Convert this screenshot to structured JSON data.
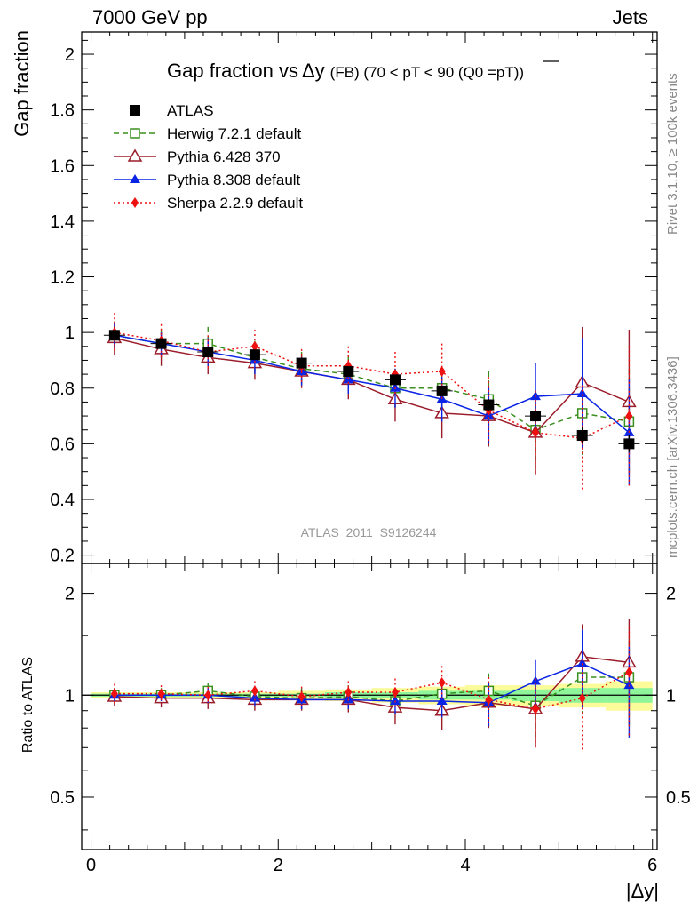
{
  "header": {
    "left": "7000 GeV pp",
    "right": "Jets"
  },
  "side_labels": {
    "top": "Rivet 3.1.10, ≥ 100k events",
    "bottom": "mcplots.cern.ch [arXiv:1306.3436]"
  },
  "watermark": "ATLAS_2011_S9126244",
  "colors": {
    "atlas": "#000000",
    "herwig": "#3a8f1e",
    "pythia6": "#9b1c2a",
    "pythia8": "#0a24e6",
    "sherpa": "#ee1111",
    "band_inner": "#8ef59a",
    "band_outer": "#fbfb9a"
  },
  "chart_data": [
    {
      "type": "scatter",
      "title_main": "Gap fraction vs",
      "title_var": "Δy",
      "title_detail": "(FB) (70 < pT <  90 (Q0 =pT))",
      "ylabel": "Gap fraction",
      "xlabel": "|Δy|",
      "xlim": [
        -0.1,
        6.05
      ],
      "ylim": [
        0.17,
        2.08
      ],
      "yticks": [
        0.2,
        0.4,
        0.6,
        0.8,
        1,
        1.2,
        1.4,
        1.6,
        1.8,
        2
      ],
      "legend_position": "top-left",
      "x": [
        0.25,
        0.75,
        1.25,
        1.75,
        2.25,
        2.75,
        3.25,
        3.75,
        4.25,
        4.75,
        5.25,
        5.75
      ],
      "series": [
        {
          "name": "ATLAS",
          "key": "atlas",
          "marker": "square-filled",
          "values": [
            0.99,
            0.96,
            0.93,
            0.92,
            0.89,
            0.86,
            0.83,
            0.79,
            0.74,
            0.7,
            0.63,
            0.6
          ],
          "errors": [
            0.01,
            0.01,
            0.01,
            0.01,
            0.01,
            0.01,
            0.01,
            0.01,
            0.02,
            0.02,
            0.03,
            0.03
          ]
        },
        {
          "name": "Herwig 7.2.1 default",
          "key": "herwig",
          "marker": "square-open",
          "dash": "6,4",
          "values": [
            0.99,
            0.96,
            0.96,
            0.91,
            0.87,
            0.85,
            0.8,
            0.8,
            0.76,
            0.65,
            0.71,
            0.68
          ],
          "errors": [
            0.04,
            0.05,
            0.06,
            0.06,
            0.06,
            0.07,
            0.07,
            0.08,
            0.1,
            0.13,
            0.15,
            0.19
          ]
        },
        {
          "name": "Pythia 6.428 370",
          "key": "pythia6",
          "marker": "triangle-open",
          "dash": "",
          "values": [
            0.98,
            0.94,
            0.91,
            0.89,
            0.86,
            0.83,
            0.76,
            0.71,
            0.7,
            0.64,
            0.82,
            0.75
          ],
          "errors": [
            0.06,
            0.06,
            0.06,
            0.06,
            0.06,
            0.07,
            0.08,
            0.09,
            0.11,
            0.15,
            0.2,
            0.26
          ]
        },
        {
          "name": "Pythia 8.308 default",
          "key": "pythia8",
          "marker": "triangle-filled",
          "dash": "",
          "values": [
            0.99,
            0.96,
            0.93,
            0.9,
            0.86,
            0.83,
            0.8,
            0.76,
            0.7,
            0.77,
            0.78,
            0.64
          ],
          "errors": [
            0.04,
            0.04,
            0.05,
            0.05,
            0.05,
            0.05,
            0.07,
            0.08,
            0.1,
            0.12,
            0.2,
            0.19
          ]
        },
        {
          "name": "Sherpa 2.2.9 default",
          "key": "sherpa",
          "marker": "diamond-filled",
          "dash": "2,3",
          "values": [
            1.0,
            0.97,
            0.93,
            0.95,
            0.88,
            0.88,
            0.85,
            0.86,
            0.72,
            0.64,
            0.62,
            0.7
          ],
          "errors": [
            0.07,
            0.06,
            0.06,
            0.06,
            0.06,
            0.07,
            0.08,
            0.1,
            0.12,
            0.15,
            0.19,
            0.25
          ]
        }
      ]
    },
    {
      "type": "scatter",
      "ylabel": "Ratio to ATLAS",
      "xlabel": "|Δy|",
      "xlim": [
        -0.1,
        6.05
      ],
      "ylim": [
        0.35,
        2.45
      ],
      "yscale": "log",
      "yticks": [
        0.5,
        1,
        2
      ],
      "xticks": [
        0,
        2,
        4,
        6
      ],
      "reference_line": 1,
      "band_inner": [
        0.01,
        0.01,
        0.01,
        0.01,
        0.01,
        0.02,
        0.02,
        0.03,
        0.03,
        0.04,
        0.05,
        0.05
      ],
      "band_outer": [
        0.02,
        0.02,
        0.02,
        0.02,
        0.03,
        0.04,
        0.05,
        0.06,
        0.07,
        0.07,
        0.08,
        0.1
      ],
      "series": [
        {
          "name": "Herwig 7.2.1 default",
          "key": "herwig",
          "marker": "square-open",
          "dash": "6,4",
          "values": [
            1.0,
            1.0,
            1.03,
            0.99,
            0.98,
            0.99,
            0.96,
            1.01,
            1.03,
            0.93,
            1.13,
            1.13
          ],
          "errors": [
            0.04,
            0.05,
            0.06,
            0.06,
            0.07,
            0.08,
            0.08,
            0.1,
            0.13,
            0.19,
            0.24,
            0.32
          ]
        },
        {
          "name": "Pythia 6.428 370",
          "key": "pythia6",
          "marker": "triangle-open",
          "dash": "",
          "values": [
            0.99,
            0.98,
            0.98,
            0.97,
            0.97,
            0.97,
            0.92,
            0.9,
            0.95,
            0.91,
            1.3,
            1.25
          ],
          "errors": [
            0.06,
            0.06,
            0.07,
            0.07,
            0.07,
            0.08,
            0.1,
            0.11,
            0.15,
            0.21,
            0.32,
            0.43
          ]
        },
        {
          "name": "Pythia 8.308 default",
          "key": "pythia8",
          "marker": "triangle-filled",
          "dash": "",
          "values": [
            1.0,
            1.0,
            1.0,
            0.98,
            0.97,
            0.97,
            0.96,
            0.96,
            0.95,
            1.1,
            1.24,
            1.07
          ],
          "errors": [
            0.04,
            0.04,
            0.05,
            0.05,
            0.06,
            0.06,
            0.08,
            0.1,
            0.14,
            0.17,
            0.32,
            0.32
          ]
        },
        {
          "name": "Sherpa 2.2.9 default",
          "key": "sherpa",
          "marker": "diamond-filled",
          "dash": "2,3",
          "values": [
            1.01,
            1.01,
            1.0,
            1.03,
            0.99,
            1.02,
            1.02,
            1.09,
            0.97,
            0.91,
            0.98,
            1.17
          ],
          "errors": [
            0.07,
            0.06,
            0.06,
            0.07,
            0.07,
            0.08,
            0.1,
            0.13,
            0.16,
            0.21,
            0.3,
            0.42
          ]
        }
      ]
    }
  ]
}
